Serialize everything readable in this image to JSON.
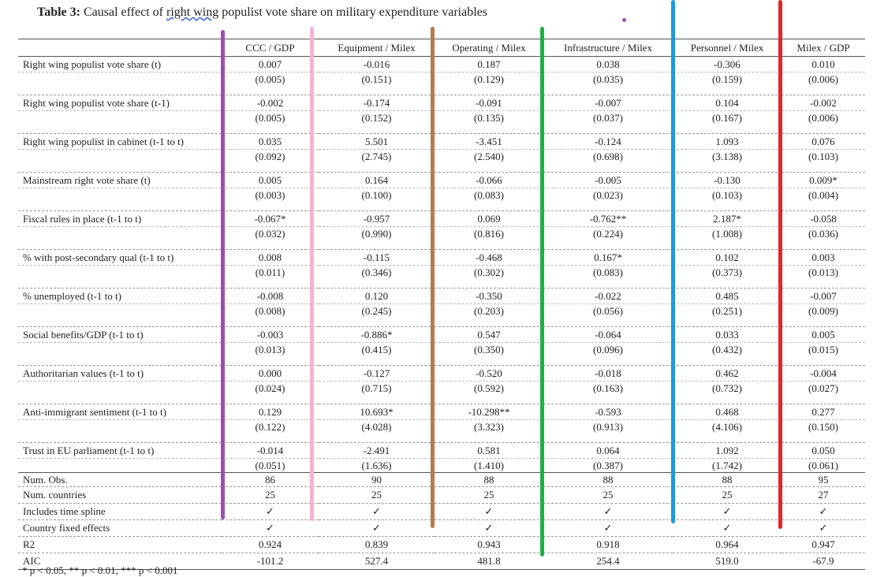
{
  "title": {
    "bold": "Table 3:",
    "pre": "Causal effect of",
    "underlined": "right wing",
    "post": "populist vote share on military expenditure variables"
  },
  "columns": [
    "CCC / GDP",
    "Equipment / Milex",
    "Operating / Milex",
    "Infrastructure / Milex",
    "Personnel / Milex",
    "Milex / GDP"
  ],
  "rows": [
    {
      "label": "Right wing populist vote share (t)",
      "est": [
        "0.007",
        "-0.016",
        "0.187",
        "0.038",
        "-0.306",
        "0.010"
      ],
      "se": [
        "(0.005)",
        "(0.151)",
        "(0.129)",
        "(0.035)",
        "(0.159)",
        "(0.006)"
      ]
    },
    {
      "label": "Right wing populist vote share (t-1)",
      "est": [
        "-0.002",
        "-0.174",
        "-0.091",
        "-0.007",
        "0.104",
        "-0.002"
      ],
      "se": [
        "(0.005)",
        "(0.152)",
        "(0.135)",
        "(0.037)",
        "(0.167)",
        "(0.006)"
      ]
    },
    {
      "label": "Right wing populist in cabinet (t-1 to t)",
      "est": [
        "0.035",
        "5.501",
        "-3.451",
        "-0.124",
        "1.093",
        "0.076"
      ],
      "se": [
        "(0.092)",
        "(2.745)",
        "(2.540)",
        "(0.698)",
        "(3.138)",
        "(0.103)"
      ]
    },
    {
      "label": "Mainstream right vote share (t)",
      "est": [
        "0.005",
        "0.164",
        "-0.066",
        "-0.005",
        "-0.130",
        "0.009*"
      ],
      "se": [
        "(0.003)",
        "(0.100)",
        "(0.083)",
        "(0.023)",
        "(0.103)",
        "(0.004)"
      ]
    },
    {
      "label": "Fiscal rules in place (t-1 to t)",
      "est": [
        "-0.067*",
        "-0.957",
        "0.069",
        "-0.762**",
        "2.187*",
        "-0.058"
      ],
      "se": [
        "(0.032)",
        "(0.990)",
        "(0.816)",
        "(0.224)",
        "(1.008)",
        "(0.036)"
      ]
    },
    {
      "label": "% with post-secondary qual (t-1 to t)",
      "est": [
        "0.008",
        "-0.115",
        "-0.468",
        "0.167*",
        "0.102",
        "0.003"
      ],
      "se": [
        "(0.011)",
        "(0.346)",
        "(0.302)",
        "(0.083)",
        "(0.373)",
        "(0.013)"
      ]
    },
    {
      "label": "% unemployed (t-1 to t)",
      "est": [
        "-0.008",
        "0.120",
        "-0.350",
        "-0.022",
        "0.485",
        "-0.007"
      ],
      "se": [
        "(0.008)",
        "(0.245)",
        "(0.203)",
        "(0.056)",
        "(0.251)",
        "(0.009)"
      ]
    },
    {
      "label": "Social benefits/GDP (t-1 to t)",
      "est": [
        "-0.003",
        "-0.886*",
        "0.547",
        "-0.064",
        "0.033",
        "0.005"
      ],
      "se": [
        "(0.013)",
        "(0.415)",
        "(0.350)",
        "(0.096)",
        "(0.432)",
        "(0.015)"
      ]
    },
    {
      "label": "Authoritarian values (t-1 to t)",
      "est": [
        "0.000",
        "-0.127",
        "-0.520",
        "-0.018",
        "0.462",
        "-0.004"
      ],
      "se": [
        "(0.024)",
        "(0.715)",
        "(0.592)",
        "(0.163)",
        "(0.732)",
        "(0.027)"
      ]
    },
    {
      "label": "Anti-immigrant sentiment (t-1 to t)",
      "est": [
        "0.129",
        "10.693*",
        "-10.298**",
        "-0.593",
        "0.468",
        "0.277"
      ],
      "se": [
        "(0.122)",
        "(4.028)",
        "(3.323)",
        "(0.913)",
        "(4.106)",
        "(0.150)"
      ]
    },
    {
      "label": "Trust in EU parliament (t-1 to t)",
      "est": [
        "-0.014",
        "-2.491",
        "0.581",
        "0.064",
        "1.092",
        "0.050"
      ],
      "se": [
        "(0.051)",
        "(1.636)",
        "(1.410)",
        "(0.387)",
        "(1.742)",
        "(0.061)"
      ]
    }
  ],
  "stats": [
    {
      "label": "Num. Obs.",
      "values": [
        "86",
        "90",
        "88",
        "88",
        "88",
        "95"
      ]
    },
    {
      "label": "Num. countries",
      "values": [
        "25",
        "25",
        "25",
        "25",
        "25",
        "27"
      ]
    },
    {
      "label": "Includes time spline",
      "values": [
        "✓",
        "✓",
        "✓",
        "✓",
        "✓",
        "✓"
      ]
    },
    {
      "label": "Country fixed effects",
      "values": [
        "✓",
        "✓",
        "✓",
        "✓",
        "✓",
        "✓"
      ]
    },
    {
      "label": "R2",
      "values": [
        "0.924",
        "0.839",
        "0.943",
        "0.918",
        "0.964",
        "0.947"
      ]
    },
    {
      "label": "AIC",
      "values": [
        "-101.2",
        "527.4",
        "481.8",
        "254.4",
        "519.0",
        "-67.9"
      ]
    }
  ],
  "note": "* p < 0.05, ** p < 0.01, *** p < 0.001",
  "colors": {
    "bar_purple": "#9b4fb0",
    "bar_pink": "#f6b3d0",
    "bar_brown": "#b87a4b",
    "bar_green": "#1fb04a",
    "bar_blue": "#1a9be0",
    "bar_red": "#e0262b"
  }
}
